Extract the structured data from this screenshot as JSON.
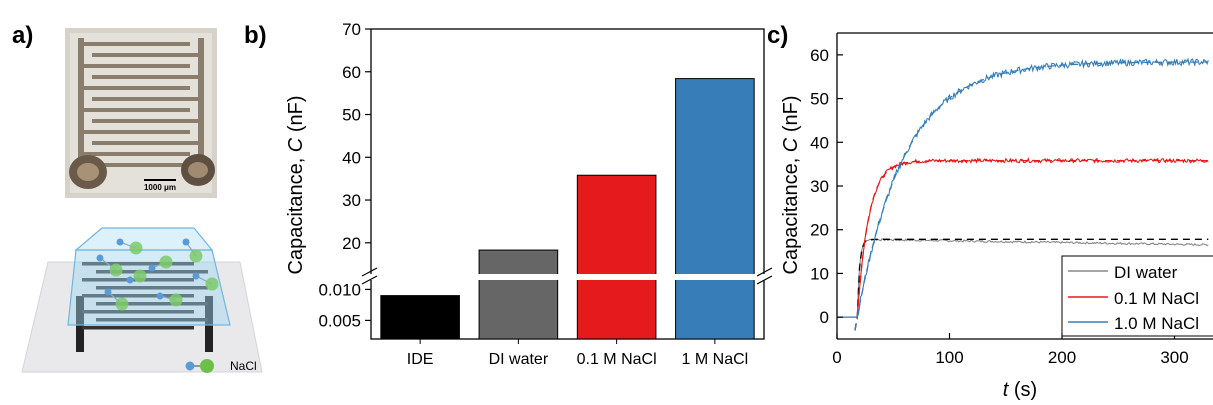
{
  "panels": {
    "a": "a)",
    "b": "b)",
    "c": "c)"
  },
  "micrograph": {
    "scale_bar": "1000 μm"
  },
  "schematic": {
    "legend_label": "NaCl"
  },
  "chart_data": [
    {
      "type": "bar",
      "categories": [
        "IDE",
        "DI water",
        "0.1 M NaCl",
        "1 M NaCl"
      ],
      "values": [
        0.009,
        18.3,
        35.8,
        58.4
      ],
      "bar_colors": [
        "#000000",
        "#666666",
        "#e41a1c",
        "#377eb8"
      ],
      "ylabel_main": "Capacitance, ",
      "ylabel_italic": "C",
      "ylabel_unit": " (nF)",
      "y_ticks_upper": [
        "20",
        "30",
        "40",
        "50",
        "60",
        "70"
      ],
      "y_ticks_lower": [
        "0.005",
        "0.010"
      ],
      "ylim_upper": [
        12,
        70
      ],
      "ylim_lower": [
        0.002,
        0.012
      ],
      "axis_break": true
    },
    {
      "type": "line",
      "xlabel_italic": "t",
      "xlabel_unit": " (s)",
      "ylabel_main": "Capacitance, ",
      "ylabel_italic": "C",
      "ylabel_unit": " (nF)",
      "xlim": [
        0,
        320
      ],
      "ylim": [
        -5,
        65
      ],
      "x_ticks": [
        "0",
        "100",
        "200",
        "300"
      ],
      "y_ticks": [
        "0",
        "10",
        "20",
        "30",
        "40",
        "50",
        "60"
      ],
      "legend": [
        "DI water",
        "0.1 M NaCl",
        "1.0 M NaCl"
      ],
      "series": [
        {
          "name": "DI water",
          "color": "#888888",
          "fit_color": "#000000",
          "plateau": 17.8,
          "tau": 2,
          "drift": -0.004
        },
        {
          "name": "0.1 M NaCl",
          "color": "#e41a1c",
          "fit_color": "#e41a1c",
          "plateau": 35.8,
          "tau": 10,
          "drift": 0.0
        },
        {
          "name": "1.0 M NaCl",
          "color": "#377eb8",
          "fit_color": "#377eb8",
          "plateau": 58.4,
          "tau": 42,
          "drift": 0.0
        }
      ],
      "onset_time": 18
    }
  ]
}
